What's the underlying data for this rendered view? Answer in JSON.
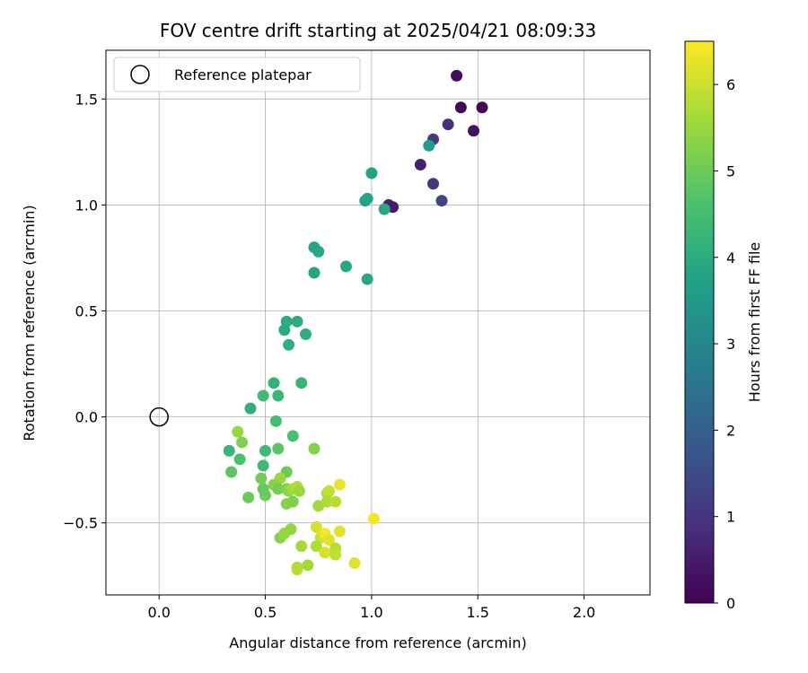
{
  "chart_data": {
    "type": "scatter",
    "title": "FOV centre drift starting at 2025/04/21 08:09:33",
    "xlabel": "Angular distance from reference (arcmin)",
    "ylabel": "Rotation from reference (arcmin)",
    "xlim": [
      -0.25,
      2.31
    ],
    "ylim": [
      -0.84,
      1.73
    ],
    "xticks": [
      0.0,
      0.5,
      1.0,
      1.5,
      2.0
    ],
    "xtick_labels": [
      "0.0",
      "0.5",
      "1.0",
      "1.5",
      "2.0"
    ],
    "yticks": [
      -0.5,
      0.0,
      0.5,
      1.0,
      1.5
    ],
    "ytick_labels": [
      "−0.5",
      "0.0",
      "0.5",
      "1.0",
      "1.5"
    ],
    "grid": true,
    "legend": {
      "position": "top-left",
      "entries": [
        "Reference platepar"
      ]
    },
    "reference_point": {
      "x": 0.0,
      "y": 0.0,
      "label": "Reference platepar"
    },
    "colorbar": {
      "label": "Hours from first FF file",
      "range": [
        0,
        6.5
      ],
      "ticks": [
        0,
        1,
        2,
        3,
        4,
        5,
        6
      ],
      "tick_labels": [
        "0",
        "1",
        "2",
        "3",
        "4",
        "5",
        "6"
      ],
      "colormap": "viridis"
    },
    "points": [
      {
        "x": 1.4,
        "y": 1.61,
        "c": 0.2
      },
      {
        "x": 1.42,
        "y": 1.46,
        "c": 0.1
      },
      {
        "x": 1.52,
        "y": 1.46,
        "c": 0.15
      },
      {
        "x": 1.48,
        "y": 1.35,
        "c": 0.3
      },
      {
        "x": 1.36,
        "y": 1.38,
        "c": 0.9
      },
      {
        "x": 1.29,
        "y": 1.31,
        "c": 1.1
      },
      {
        "x": 1.23,
        "y": 1.19,
        "c": 0.6
      },
      {
        "x": 1.29,
        "y": 1.1,
        "c": 1.0
      },
      {
        "x": 1.33,
        "y": 1.02,
        "c": 1.3
      },
      {
        "x": 1.08,
        "y": 1.0,
        "c": 0.7
      },
      {
        "x": 1.1,
        "y": 0.99,
        "c": 0.5
      },
      {
        "x": 1.27,
        "y": 1.28,
        "c": 3.6
      },
      {
        "x": 1.0,
        "y": 1.15,
        "c": 3.8
      },
      {
        "x": 0.97,
        "y": 1.02,
        "c": 3.7
      },
      {
        "x": 0.98,
        "y": 1.03,
        "c": 3.8
      },
      {
        "x": 1.06,
        "y": 0.98,
        "c": 3.9
      },
      {
        "x": 0.73,
        "y": 0.8,
        "c": 3.8
      },
      {
        "x": 0.75,
        "y": 0.78,
        "c": 3.9
      },
      {
        "x": 0.88,
        "y": 0.71,
        "c": 3.9
      },
      {
        "x": 0.73,
        "y": 0.68,
        "c": 3.8
      },
      {
        "x": 0.98,
        "y": 0.65,
        "c": 3.9
      },
      {
        "x": 0.6,
        "y": 0.45,
        "c": 4.0
      },
      {
        "x": 0.65,
        "y": 0.45,
        "c": 4.0
      },
      {
        "x": 0.59,
        "y": 0.41,
        "c": 4.0
      },
      {
        "x": 0.69,
        "y": 0.39,
        "c": 4.1
      },
      {
        "x": 0.61,
        "y": 0.34,
        "c": 4.1
      },
      {
        "x": 0.54,
        "y": 0.16,
        "c": 4.2
      },
      {
        "x": 0.67,
        "y": 0.16,
        "c": 4.3
      },
      {
        "x": 0.49,
        "y": 0.1,
        "c": 4.4
      },
      {
        "x": 0.56,
        "y": 0.1,
        "c": 4.3
      },
      {
        "x": 0.43,
        "y": 0.04,
        "c": 4.1
      },
      {
        "x": 0.55,
        "y": -0.02,
        "c": 4.5
      },
      {
        "x": 0.63,
        "y": -0.09,
        "c": 4.6
      },
      {
        "x": 0.5,
        "y": -0.16,
        "c": 4.4
      },
      {
        "x": 0.56,
        "y": -0.15,
        "c": 4.8
      },
      {
        "x": 0.33,
        "y": -0.16,
        "c": 4.3
      },
      {
        "x": 0.38,
        "y": -0.2,
        "c": 4.6
      },
      {
        "x": 0.34,
        "y": -0.26,
        "c": 4.8
      },
      {
        "x": 0.49,
        "y": -0.23,
        "c": 4.4
      },
      {
        "x": 0.37,
        "y": -0.07,
        "c": 5.5
      },
      {
        "x": 0.39,
        "y": -0.12,
        "c": 5.2
      },
      {
        "x": 0.73,
        "y": -0.15,
        "c": 5.3
      },
      {
        "x": 0.6,
        "y": -0.26,
        "c": 5.0
      },
      {
        "x": 0.48,
        "y": -0.29,
        "c": 5.1
      },
      {
        "x": 0.57,
        "y": -0.29,
        "c": 5.5
      },
      {
        "x": 0.54,
        "y": -0.32,
        "c": 5.3
      },
      {
        "x": 0.56,
        "y": -0.34,
        "c": 5.1
      },
      {
        "x": 0.49,
        "y": -0.34,
        "c": 4.9
      },
      {
        "x": 0.5,
        "y": -0.37,
        "c": 5.0
      },
      {
        "x": 0.42,
        "y": -0.38,
        "c": 5.0
      },
      {
        "x": 0.6,
        "y": -0.34,
        "c": 5.2
      },
      {
        "x": 0.61,
        "y": -0.35,
        "c": 5.4
      },
      {
        "x": 0.63,
        "y": -0.34,
        "c": 5.6
      },
      {
        "x": 0.65,
        "y": -0.33,
        "c": 5.7
      },
      {
        "x": 0.66,
        "y": -0.35,
        "c": 5.5
      },
      {
        "x": 0.6,
        "y": -0.41,
        "c": 5.3
      },
      {
        "x": 0.63,
        "y": -0.4,
        "c": 5.2
      },
      {
        "x": 0.75,
        "y": -0.42,
        "c": 5.6
      },
      {
        "x": 0.79,
        "y": -0.36,
        "c": 5.8
      },
      {
        "x": 0.8,
        "y": -0.35,
        "c": 5.9
      },
      {
        "x": 0.79,
        "y": -0.4,
        "c": 5.7
      },
      {
        "x": 0.83,
        "y": -0.4,
        "c": 5.8
      },
      {
        "x": 0.85,
        "y": -0.32,
        "c": 6.3
      },
      {
        "x": 0.57,
        "y": -0.57,
        "c": 5.3
      },
      {
        "x": 0.59,
        "y": -0.55,
        "c": 5.5
      },
      {
        "x": 0.62,
        "y": -0.53,
        "c": 5.4
      },
      {
        "x": 0.67,
        "y": -0.61,
        "c": 5.6
      },
      {
        "x": 0.74,
        "y": -0.52,
        "c": 6.1
      },
      {
        "x": 0.76,
        "y": -0.57,
        "c": 6.0
      },
      {
        "x": 0.74,
        "y": -0.61,
        "c": 5.7
      },
      {
        "x": 0.78,
        "y": -0.55,
        "c": 6.4
      },
      {
        "x": 0.8,
        "y": -0.58,
        "c": 6.2
      },
      {
        "x": 0.78,
        "y": -0.64,
        "c": 6.1
      },
      {
        "x": 0.83,
        "y": -0.62,
        "c": 5.8
      },
      {
        "x": 0.83,
        "y": -0.65,
        "c": 5.9
      },
      {
        "x": 0.85,
        "y": -0.54,
        "c": 6.2
      },
      {
        "x": 0.92,
        "y": -0.69,
        "c": 6.2
      },
      {
        "x": 0.65,
        "y": -0.71,
        "c": 5.7
      },
      {
        "x": 0.65,
        "y": -0.72,
        "c": 5.8
      },
      {
        "x": 0.7,
        "y": -0.7,
        "c": 5.6
      },
      {
        "x": 1.01,
        "y": -0.48,
        "c": 6.4
      }
    ]
  }
}
